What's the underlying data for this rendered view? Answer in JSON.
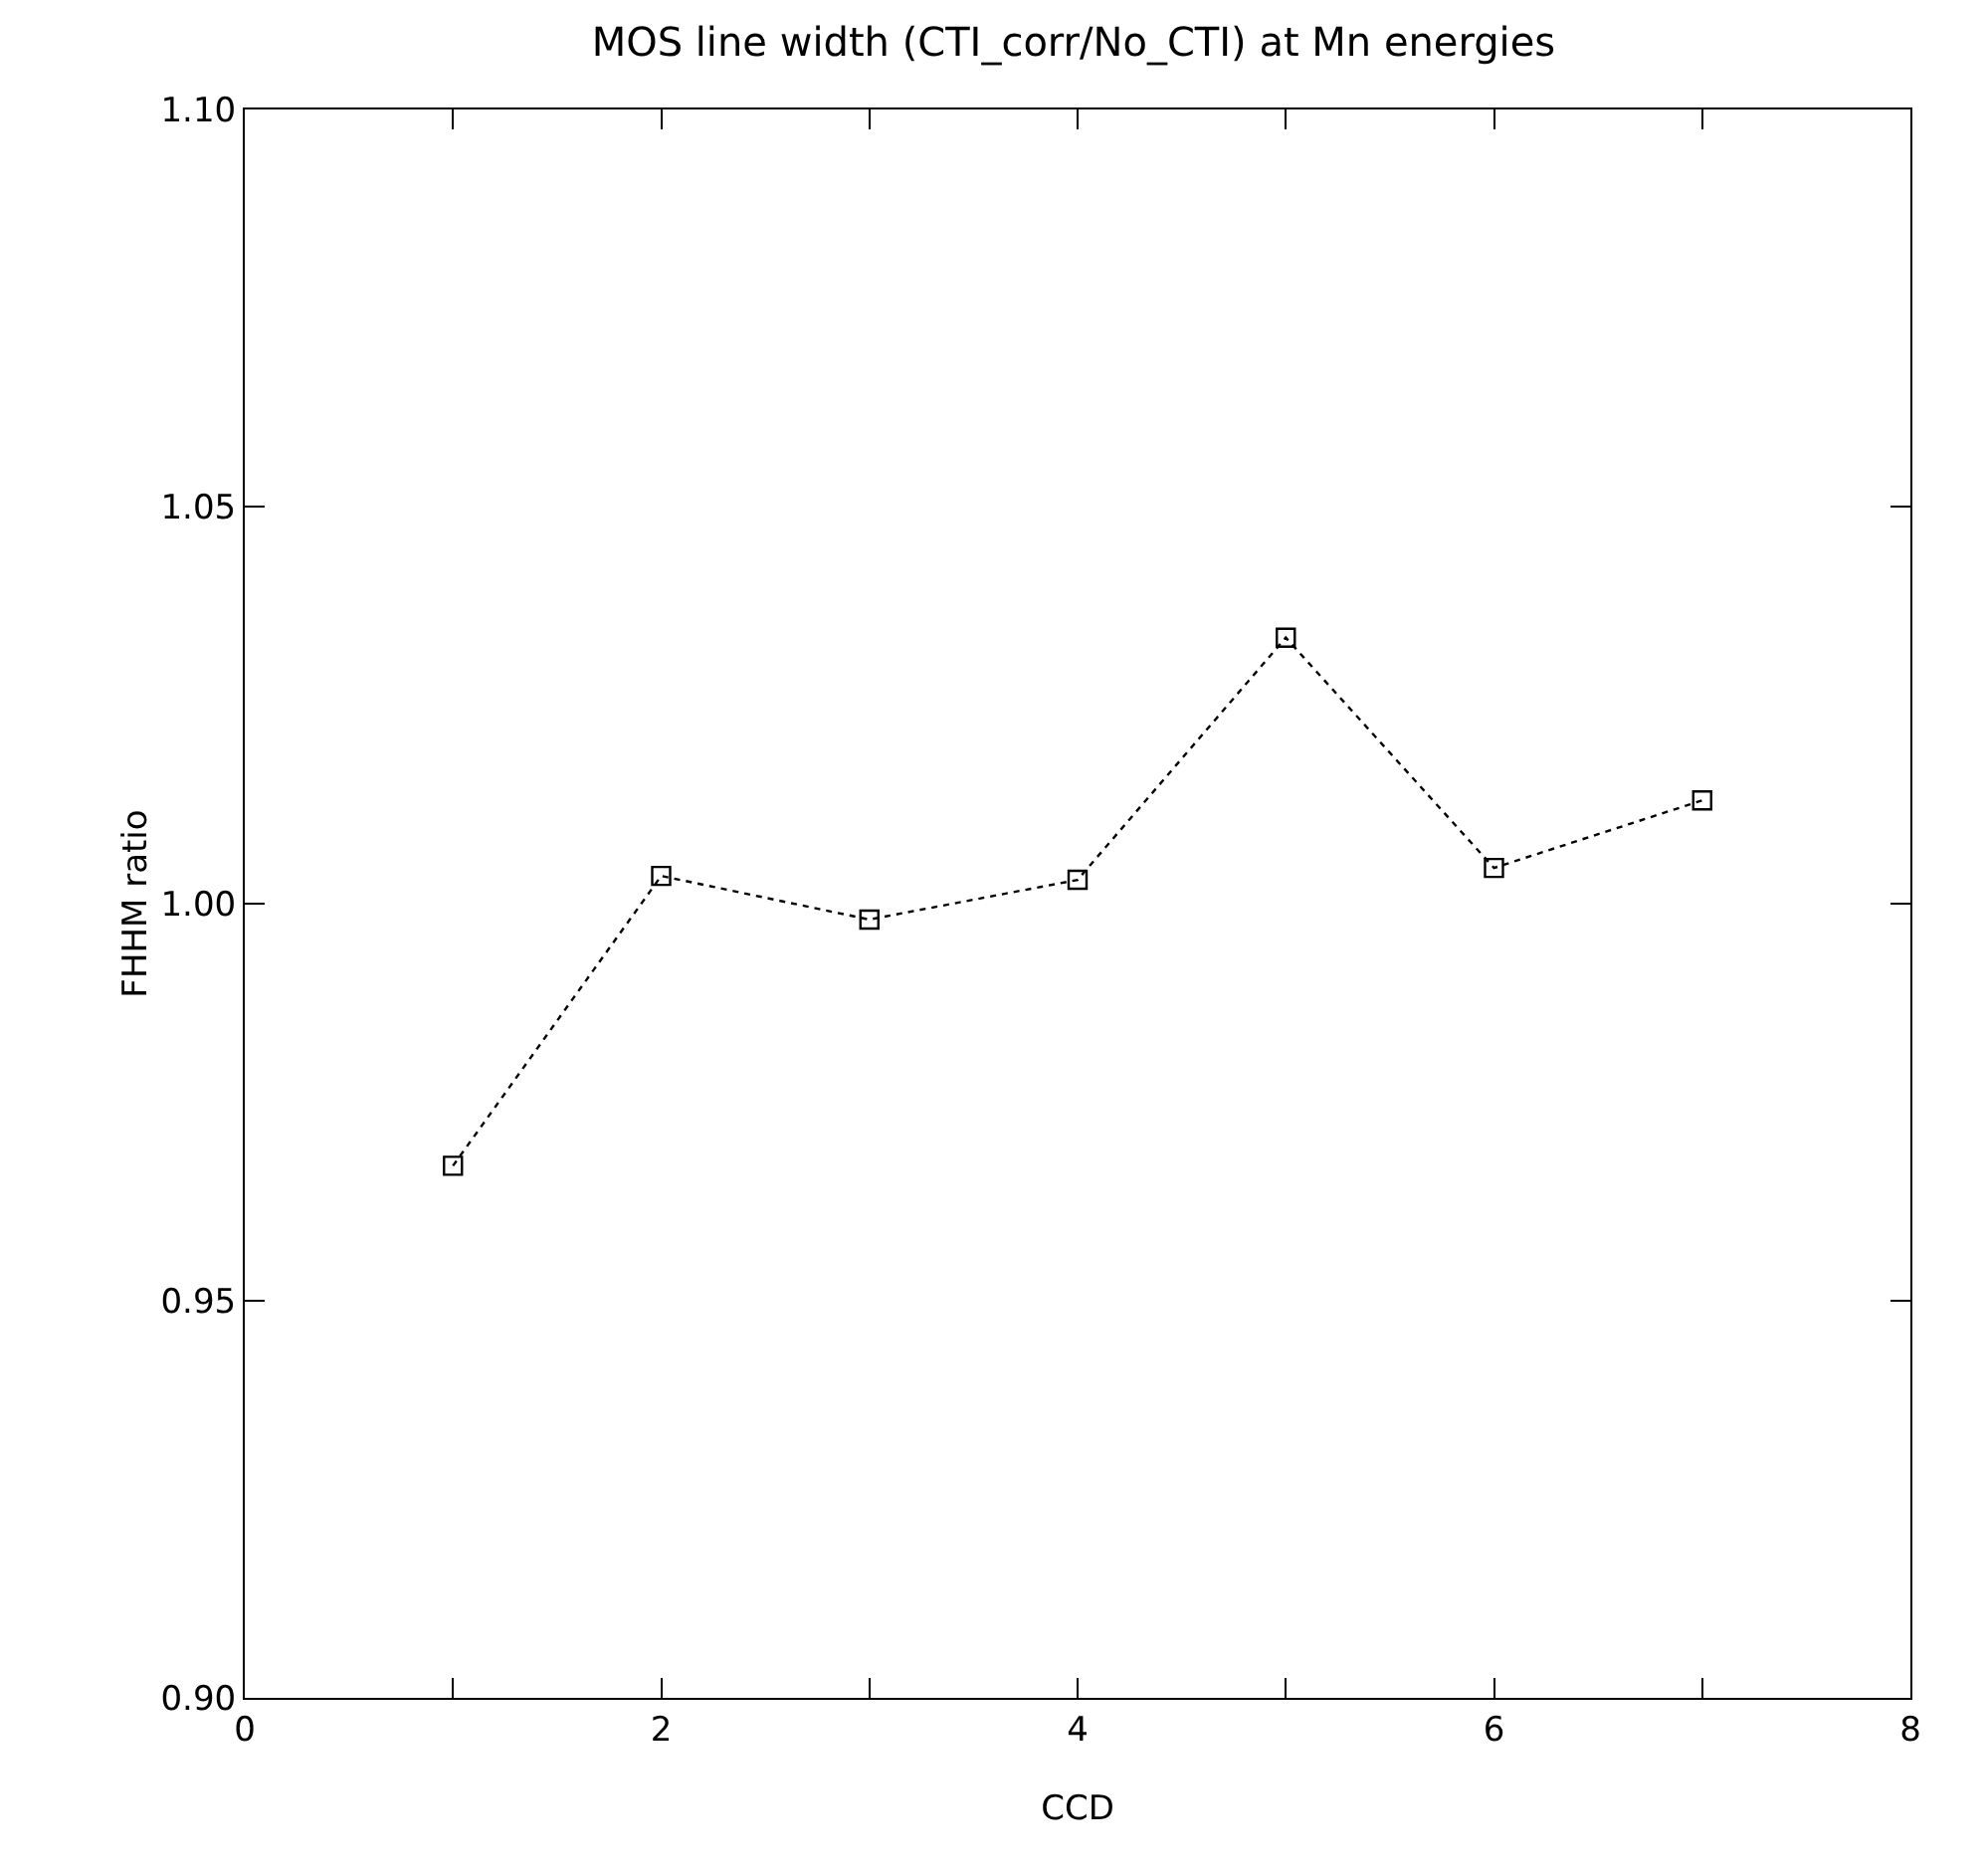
{
  "chart_data": {
    "type": "line",
    "title": "MOS line width (CTI_corr/No_CTI) at Mn energies",
    "xlabel": "CCD",
    "ylabel": "FHHM ratio",
    "x": [
      1,
      2,
      3,
      4,
      5,
      6,
      7
    ],
    "series": [
      {
        "color": "#000000",
        "values": [
          0.967,
          1.0035,
          0.998,
          1.003,
          1.0335,
          1.0045,
          1.013
        ]
      }
    ],
    "xlim": [
      0,
      8
    ],
    "xticks": [
      0,
      {
        "value": 1,
        "label": null
      },
      2,
      {
        "value": 3,
        "label": null
      },
      4,
      {
        "value": 5,
        "label": null
      },
      6,
      {
        "value": 7,
        "label": null
      },
      8
    ],
    "ylim": [
      0.9,
      1.1
    ],
    "yticks": [
      {
        "value": 0.9,
        "label": "0.90"
      },
      {
        "value": 0.95,
        "label": "0.95"
      },
      {
        "value": 1.0,
        "label": "1.00"
      },
      {
        "value": 1.05,
        "label": "1.05"
      },
      {
        "value": 1.1,
        "label": "1.10"
      }
    ],
    "grid": false,
    "marker": "square",
    "line_style": "dotted"
  }
}
